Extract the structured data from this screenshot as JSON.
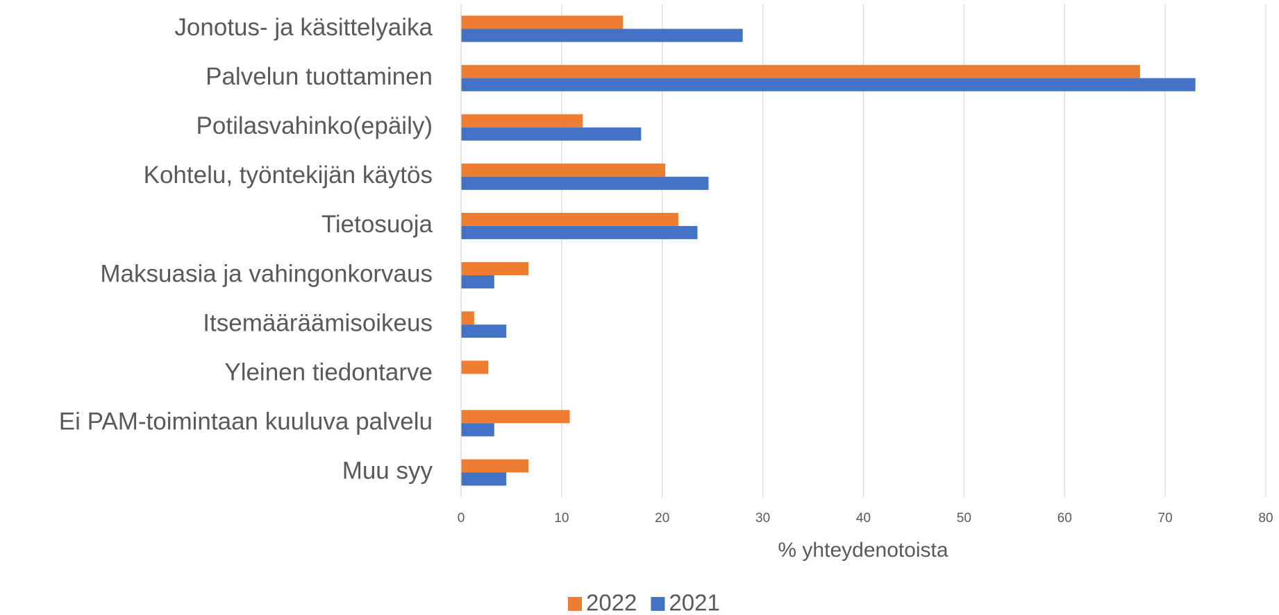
{
  "chart_data": {
    "type": "bar",
    "orientation": "horizontal",
    "categories": [
      "Jonotus- ja käsittelyaika",
      "Palvelun tuottaminen",
      "Potilasvahinko(epäily)",
      "Kohtelu, työntekijän käytös",
      "Tietosuoja",
      "Maksuasia ja vahingonkorvaus",
      "Itsemääräämisoikeus",
      "Yleinen tiedontarve",
      "Ei PAM-toimintaan kuuluva palvelu",
      "Muu syy"
    ],
    "series": [
      {
        "name": "2022",
        "color": "#ed7d31",
        "values": [
          16.1,
          67.5,
          12.1,
          20.3,
          21.6,
          6.7,
          1.3,
          2.7,
          10.8,
          6.7
        ]
      },
      {
        "name": "2021",
        "color": "#4472c4",
        "values": [
          28.0,
          73.0,
          17.9,
          24.6,
          23.5,
          3.3,
          4.5,
          0,
          3.3,
          4.5
        ]
      }
    ],
    "x_label": "% yhteydenotoista",
    "xlim": [
      0,
      80
    ],
    "xticks": [
      0,
      10,
      20,
      30,
      40,
      50,
      60,
      70,
      80
    ],
    "grid": true,
    "legend": "bottom"
  }
}
